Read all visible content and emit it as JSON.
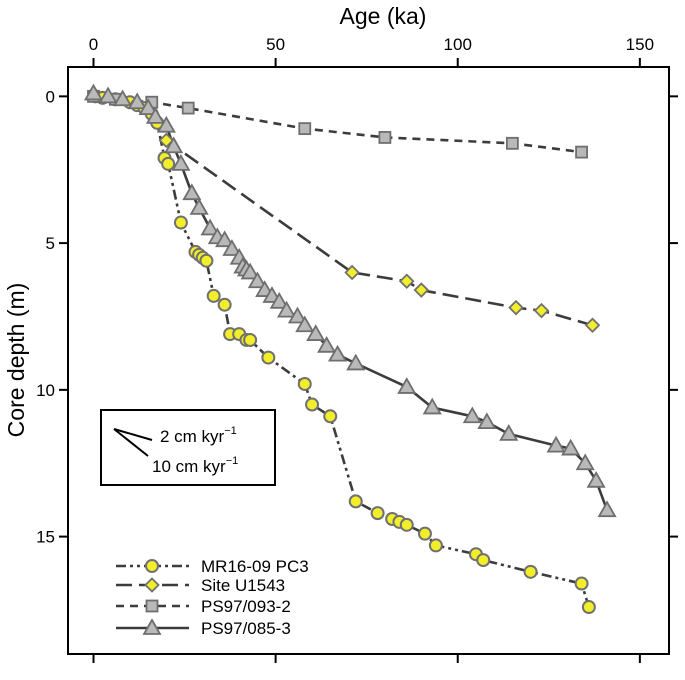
{
  "chart_data": {
    "type": "scatter",
    "title": "",
    "xlabel": "Age (ka)",
    "ylabel": "Core depth (m)",
    "xlim": [
      -7,
      158
    ],
    "ylim": [
      19,
      -1
    ],
    "xticks": [
      0,
      50,
      100,
      150
    ],
    "yticks": [
      0,
      5,
      10,
      15
    ],
    "xtick_labels": [
      "0",
      "50",
      "100",
      "150"
    ],
    "ytick_labels": [
      "0",
      "5",
      "10",
      "15"
    ],
    "legend": "bottom-left",
    "series": [
      {
        "name": "MR16-09 PC3",
        "marker": "circle",
        "line": "dash-dot-dot",
        "fill": "#f2ef2a",
        "stroke": "#707070",
        "points": [
          [
            0.5,
            0.0
          ],
          [
            2.5,
            0.05
          ],
          [
            6,
            0.1
          ],
          [
            10,
            0.2
          ],
          [
            12,
            0.3
          ],
          [
            14,
            0.4
          ],
          [
            16,
            0.6
          ],
          [
            17.5,
            0.9
          ],
          [
            19.5,
            2.1
          ],
          [
            20.5,
            2.3
          ],
          [
            24,
            4.3
          ],
          [
            28,
            5.3
          ],
          [
            29,
            5.4
          ],
          [
            30,
            5.5
          ],
          [
            31,
            5.6
          ],
          [
            33,
            6.8
          ],
          [
            36,
            7.1
          ],
          [
            37.5,
            8.1
          ],
          [
            40,
            8.1
          ],
          [
            42,
            8.3
          ],
          [
            43,
            8.3
          ],
          [
            48,
            8.9
          ],
          [
            58,
            9.8
          ],
          [
            60,
            10.5
          ],
          [
            65,
            10.9
          ],
          [
            72,
            13.8
          ],
          [
            78,
            14.2
          ],
          [
            82,
            14.4
          ],
          [
            84,
            14.5
          ],
          [
            86,
            14.6
          ],
          [
            91,
            14.9
          ],
          [
            94,
            15.3
          ],
          [
            105,
            15.6
          ],
          [
            107,
            15.8
          ],
          [
            120,
            16.2
          ],
          [
            134,
            16.6
          ],
          [
            136,
            17.4
          ]
        ]
      },
      {
        "name": "Site U1543",
        "marker": "diamond",
        "line": "long-dash",
        "fill": "#f2ef2a",
        "stroke": "#707070",
        "points": [
          [
            20,
            1.5
          ],
          [
            71,
            6.0
          ],
          [
            86,
            6.3
          ],
          [
            90,
            6.6
          ],
          [
            116,
            7.2
          ],
          [
            123,
            7.3
          ],
          [
            137,
            7.8
          ]
        ]
      },
      {
        "name": "PS97/093-2",
        "marker": "square",
        "line": "short-dash",
        "fill": "#b9b9b9",
        "stroke": "#6e6e6e",
        "points": [
          [
            0,
            0.0
          ],
          [
            6,
            0.1
          ],
          [
            16,
            0.2
          ],
          [
            26,
            0.4
          ],
          [
            58,
            1.1
          ],
          [
            80,
            1.4
          ],
          [
            115,
            1.6
          ],
          [
            134,
            1.9
          ]
        ]
      },
      {
        "name": "PS97/085-3",
        "marker": "triangle",
        "line": "solid",
        "fill": "#b9b9b9",
        "stroke": "#6e6e6e",
        "points": [
          [
            0,
            -0.1
          ],
          [
            4,
            0.0
          ],
          [
            8,
            0.1
          ],
          [
            12,
            0.2
          ],
          [
            15,
            0.4
          ],
          [
            17,
            0.7
          ],
          [
            20,
            1.0
          ],
          [
            22,
            1.7
          ],
          [
            24,
            2.3
          ],
          [
            27,
            3.3
          ],
          [
            29,
            3.8
          ],
          [
            32,
            4.5
          ],
          [
            34,
            4.8
          ],
          [
            36,
            4.9
          ],
          [
            38,
            5.2
          ],
          [
            40,
            5.5
          ],
          [
            41,
            5.8
          ],
          [
            42,
            5.9
          ],
          [
            43,
            6.0
          ],
          [
            45,
            6.3
          ],
          [
            47,
            6.6
          ],
          [
            49,
            6.8
          ],
          [
            51,
            7.0
          ],
          [
            53,
            7.3
          ],
          [
            56,
            7.5
          ],
          [
            58,
            7.8
          ],
          [
            61,
            8.1
          ],
          [
            64,
            8.5
          ],
          [
            67,
            8.8
          ],
          [
            72,
            9.1
          ],
          [
            86,
            9.9
          ],
          [
            93,
            10.6
          ],
          [
            104,
            10.9
          ],
          [
            108,
            11.1
          ],
          [
            114,
            11.5
          ],
          [
            127,
            11.9
          ],
          [
            131,
            12.0
          ],
          [
            135,
            12.5
          ],
          [
            138,
            13.1
          ],
          [
            141,
            14.1
          ]
        ]
      }
    ],
    "annotation": {
      "line1_text": "2 cm kyr",
      "line1_exp": "−1",
      "line2_text": "10 cm kyr",
      "line2_exp": "−1"
    }
  }
}
